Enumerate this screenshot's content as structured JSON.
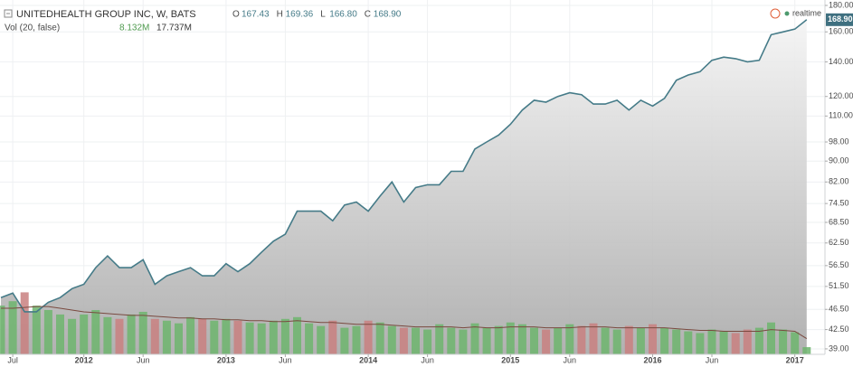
{
  "chart_data": {
    "type": "area",
    "title": "UNITEDHEALTH GROUP INC, W, BATS",
    "ohlc": [
      {
        "name": "O",
        "label": "167.43"
      },
      {
        "name": "H",
        "label": "169.36"
      },
      {
        "name": "L",
        "label": "166.80"
      },
      {
        "name": "C",
        "label": "168.90"
      }
    ],
    "volume_title": "Vol (20, false)",
    "volume_readout": [
      "8.132M",
      "17.737M"
    ],
    "status": "realtime",
    "last_price": {
      "value": 168.9,
      "label": "168.90"
    },
    "x": [
      "2011-06",
      "2011-07",
      "2011-08",
      "2011-09",
      "2011-10",
      "2011-11",
      "2011-12",
      "2012-01",
      "2012-02",
      "2012-03",
      "2012-04",
      "2012-05",
      "2012-06",
      "2012-07",
      "2012-08",
      "2012-09",
      "2012-10",
      "2012-11",
      "2012-12",
      "2013-01",
      "2013-02",
      "2013-03",
      "2013-04",
      "2013-05",
      "2013-06",
      "2013-07",
      "2013-08",
      "2013-09",
      "2013-10",
      "2013-11",
      "2013-12",
      "2014-01",
      "2014-02",
      "2014-03",
      "2014-04",
      "2014-05",
      "2014-06",
      "2014-07",
      "2014-08",
      "2014-09",
      "2014-10",
      "2014-11",
      "2014-12",
      "2015-01",
      "2015-02",
      "2015-03",
      "2015-04",
      "2015-05",
      "2015-06",
      "2015-07",
      "2015-08",
      "2015-09",
      "2015-10",
      "2015-11",
      "2015-12",
      "2016-01",
      "2016-02",
      "2016-03",
      "2016-04",
      "2016-05",
      "2016-06",
      "2016-07",
      "2016-08",
      "2016-09",
      "2016-10",
      "2016-11",
      "2016-12",
      "2017-01",
      "2017-02"
    ],
    "series": [
      {
        "name": "Price",
        "color": "#457b88",
        "values": [
          49,
          50,
          46,
          46,
          48,
          49,
          51,
          52,
          56,
          59,
          56,
          56,
          58,
          52,
          54,
          55,
          56,
          54,
          54,
          57,
          55,
          57,
          60,
          63,
          65,
          72,
          72,
          72,
          69,
          74,
          75,
          72,
          77,
          82,
          75,
          80,
          81,
          81,
          86,
          86,
          95,
          98,
          101,
          106,
          113,
          118,
          117,
          120,
          122,
          121,
          116,
          116,
          118,
          113,
          118,
          115,
          119,
          129,
          132,
          134,
          141,
          143,
          142,
          140,
          141,
          158,
          160,
          162,
          168.9
        ]
      },
      {
        "name": "Volume",
        "axis": "volume",
        "up_color": "#6db56d",
        "down_color": "#c98080",
        "values": [
          55,
          60,
          70,
          55,
          50,
          45,
          40,
          45,
          50,
          42,
          40,
          45,
          48,
          40,
          38,
          35,
          42,
          40,
          38,
          40,
          38,
          36,
          35,
          38,
          40,
          42,
          35,
          32,
          38,
          30,
          32,
          38,
          36,
          32,
          30,
          30,
          28,
          34,
          30,
          28,
          35,
          30,
          32,
          36,
          34,
          30,
          28,
          30,
          34,
          32,
          35,
          30,
          28,
          32,
          30,
          34,
          30,
          28,
          26,
          24,
          28,
          26,
          24,
          28,
          30,
          36,
          28,
          25,
          8.132
        ]
      },
      {
        "name": "Volume MA",
        "axis": "volume",
        "color": "#7a4a40",
        "values": [
          52,
          52,
          53,
          54,
          54,
          52,
          50,
          48,
          47,
          46,
          45,
          44,
          44,
          43,
          42,
          41,
          41,
          40,
          40,
          39,
          39,
          38,
          38,
          37,
          37,
          38,
          37,
          36,
          36,
          35,
          34,
          34,
          34,
          33,
          32,
          31,
          31,
          31,
          31,
          30,
          31,
          30,
          30,
          31,
          31,
          31,
          30,
          30,
          30,
          31,
          31,
          31,
          30,
          30,
          30,
          30,
          30,
          29,
          28,
          27,
          27,
          26,
          26,
          26,
          26,
          28,
          27,
          26,
          17.737
        ]
      }
    ],
    "ylim": [
      38.06,
      184.4
    ],
    "log_scale": true,
    "volume_ylim": [
      0,
      400
    ],
    "yticks": [
      {
        "value": 180,
        "label": "180.00"
      },
      {
        "value": 160,
        "label": "160.00"
      },
      {
        "value": 140,
        "label": "140.00"
      },
      {
        "value": 120,
        "label": "120.00"
      },
      {
        "value": 110,
        "label": "110.00"
      },
      {
        "value": 98,
        "label": "98.00"
      },
      {
        "value": 90,
        "label": "90.00"
      },
      {
        "value": 82,
        "label": "82.00"
      },
      {
        "value": 74.5,
        "label": "74.50"
      },
      {
        "value": 68.5,
        "label": "68.50"
      },
      {
        "value": 62.5,
        "label": "62.50"
      },
      {
        "value": 56.5,
        "label": "56.50"
      },
      {
        "value": 51.5,
        "label": "51.50"
      },
      {
        "value": 46.5,
        "label": "46.50"
      },
      {
        "value": 42.5,
        "label": "42.50"
      },
      {
        "value": 39,
        "label": "39.00"
      }
    ],
    "xticks": [
      {
        "value": "2011-07",
        "label": "Jul"
      },
      {
        "value": "2012-01",
        "label": "2012"
      },
      {
        "value": "2012-06",
        "label": "Jun"
      },
      {
        "value": "2013-01",
        "label": "2013"
      },
      {
        "value": "2013-06",
        "label": "Jun"
      },
      {
        "value": "2014-01",
        "label": "2014"
      },
      {
        "value": "2014-06",
        "label": "Jun"
      },
      {
        "value": "2015-01",
        "label": "2015"
      },
      {
        "value": "2015-06",
        "label": "Jun"
      },
      {
        "value": "2016-01",
        "label": "2016"
      },
      {
        "value": "2016-06",
        "label": "Jun"
      },
      {
        "value": "2017-01",
        "label": "2017"
      }
    ],
    "grid": true
  }
}
